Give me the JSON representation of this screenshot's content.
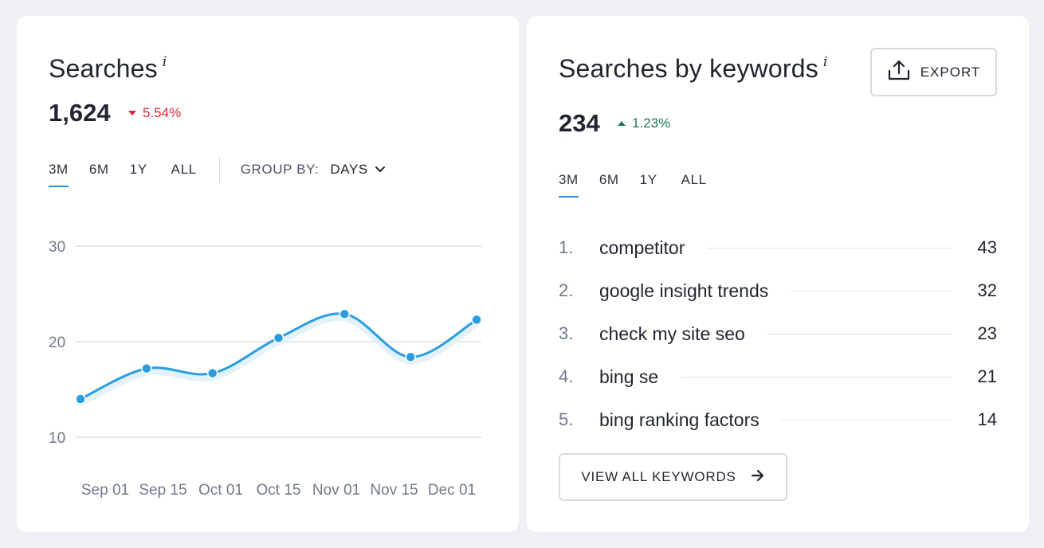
{
  "searches": {
    "title": "Searches",
    "info_mark": "i",
    "value": "1,624",
    "delta": "5.54%",
    "delta_direction": "down",
    "tabs": [
      "3M",
      "6M",
      "1Y",
      "ALL"
    ],
    "active_tab": "3M",
    "group_by_label": "GROUP BY:",
    "group_by_value": "DAYS"
  },
  "keywords": {
    "title": "Searches by keywords",
    "info_mark": "i",
    "value": "234",
    "delta": "1.23%",
    "delta_direction": "up",
    "export_label": "EXPORT",
    "tabs": [
      "3M",
      "6M",
      "1Y",
      "ALL"
    ],
    "active_tab": "3M",
    "items": [
      {
        "rank": "1.",
        "term": "competitor",
        "count": "43"
      },
      {
        "rank": "2.",
        "term": "google insight trends",
        "count": "32"
      },
      {
        "rank": "3.",
        "term": "check my site seo",
        "count": "23"
      },
      {
        "rank": "4.",
        "term": "bing se",
        "count": "21"
      },
      {
        "rank": "5.",
        "term": "bing ranking factors",
        "count": "14"
      }
    ],
    "view_all_label": "VIEW ALL KEYWORDS"
  },
  "colors": {
    "accent": "#2a8fd8",
    "down": "#d9253a",
    "up": "#1e7a52"
  },
  "chart_data": {
    "type": "line",
    "title": "",
    "xlabel": "",
    "ylabel": "",
    "x": [
      "Aug 26",
      "Sep 12",
      "Sep 28",
      "Oct 15",
      "Nov 01",
      "Nov 17",
      "Dec 01"
    ],
    "values": [
      14,
      17.2,
      16.7,
      20.4,
      22.9,
      18.4,
      22.3
    ],
    "x_ticks": [
      "Sep 01",
      "Sep 15",
      "Oct 01",
      "Oct 15",
      "Nov 01",
      "Nov 15",
      "Dec 01"
    ],
    "y_ticks": [
      10,
      20,
      30
    ],
    "ylim": [
      10,
      30
    ],
    "grid": true,
    "smooth": true,
    "color": "#2a9de0"
  }
}
